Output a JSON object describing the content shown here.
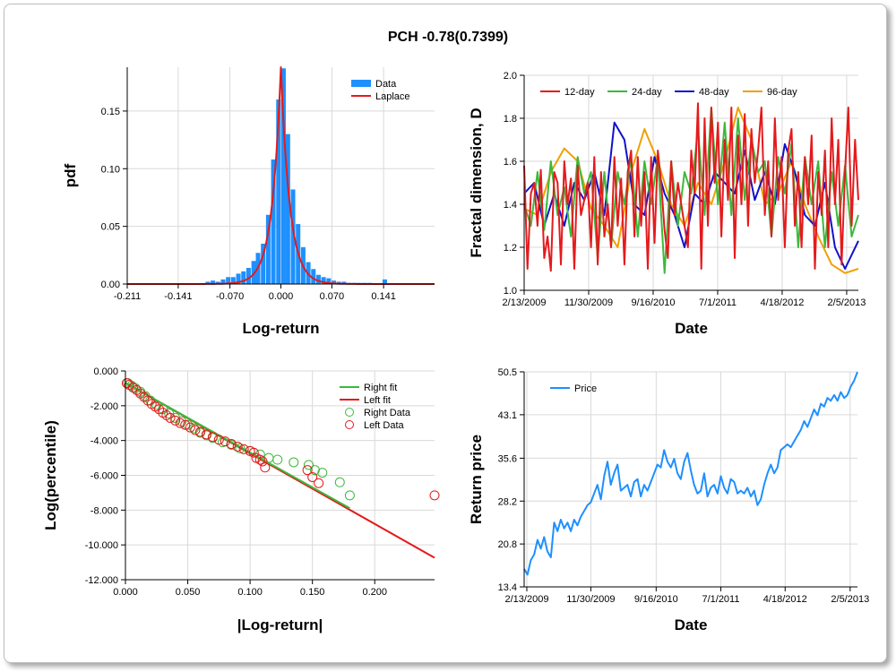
{
  "title": "PCH -0.78(0.7399)",
  "colors": {
    "data_bar": "#1e90ff",
    "laplace": "#e41a1c",
    "d12": "#e41a1c",
    "d24": "#3cb93c",
    "d48": "#1010cc",
    "d96": "#f0a000",
    "right": "#3cb93c",
    "left": "#e41a1c",
    "price": "#1e90ff",
    "grid": "#d9d9d9"
  },
  "chart_data": [
    {
      "type": "bar",
      "xlabel": "Log-return",
      "ylabel": "pdf",
      "xticks": [
        "-0.211",
        "-0.141",
        "-0.070",
        "0.000",
        "0.070",
        "0.141"
      ],
      "xtick_values": [
        -0.211,
        -0.141,
        -0.07,
        0.0,
        0.07,
        0.141
      ],
      "yticks": [
        "0.00",
        "0.05",
        "0.10",
        "0.15"
      ],
      "ytick_values": [
        0,
        0.05,
        0.1,
        0.15
      ],
      "xlim": [
        -0.211,
        0.211
      ],
      "ylim": [
        0,
        0.188
      ],
      "legend": [
        "Data",
        "Laplace"
      ],
      "bin_width": 0.0069,
      "bins": [
        [
          -0.1,
          0.002
        ],
        [
          -0.093,
          0.003
        ],
        [
          -0.086,
          0.002
        ],
        [
          -0.079,
          0.004
        ],
        [
          -0.072,
          0.006
        ],
        [
          -0.065,
          0.006
        ],
        [
          -0.058,
          0.009
        ],
        [
          -0.051,
          0.011
        ],
        [
          -0.044,
          0.014
        ],
        [
          -0.037,
          0.02
        ],
        [
          -0.031,
          0.027
        ],
        [
          -0.024,
          0.035
        ],
        [
          -0.017,
          0.06
        ],
        [
          -0.01,
          0.108
        ],
        [
          -0.003,
          0.16
        ],
        [
          0.004,
          0.187
        ],
        [
          0.01,
          0.13
        ],
        [
          0.017,
          0.082
        ],
        [
          0.024,
          0.052
        ],
        [
          0.031,
          0.032
        ],
        [
          0.038,
          0.019
        ],
        [
          0.045,
          0.013
        ],
        [
          0.052,
          0.008
        ],
        [
          0.059,
          0.006
        ],
        [
          0.066,
          0.005
        ],
        [
          0.073,
          0.003
        ],
        [
          0.08,
          0.002
        ],
        [
          0.087,
          0.002
        ],
        [
          0.094,
          0.001
        ],
        [
          0.101,
          0.001
        ],
        [
          0.108,
          0.001
        ],
        [
          0.115,
          0.001
        ],
        [
          0.122,
          0.001
        ],
        [
          0.129,
          0.0005
        ],
        [
          0.136,
          0.0005
        ],
        [
          0.143,
          0.004
        ]
      ],
      "laplace": {
        "mu": 0.0,
        "b": 0.0122
      }
    },
    {
      "type": "line",
      "xlabel": "Date",
      "ylabel": "Fractal dimension, D",
      "xticks": [
        "2/13/2009",
        "11/30/2009",
        "9/16/2010",
        "7/1/2011",
        "4/18/2012",
        "2/5/2013"
      ],
      "yticks": [
        "1.0",
        "1.2",
        "1.4",
        "1.6",
        "1.8",
        "2.0"
      ],
      "ytick_values": [
        1.0,
        1.2,
        1.4,
        1.6,
        1.8,
        2.0
      ],
      "ylim": [
        1.0,
        2.0
      ],
      "xlim": [
        0,
        100
      ],
      "series": [
        {
          "name": "12-day",
          "color_key": "d12",
          "x": [
            0,
            1,
            2,
            3,
            4,
            5,
            6,
            7,
            8,
            9,
            10,
            11,
            12,
            13,
            14,
            15,
            16,
            17,
            18,
            19,
            20,
            21,
            22,
            23,
            24,
            25,
            26,
            27,
            28,
            29,
            30,
            31,
            32,
            33,
            34,
            35,
            36,
            37,
            38,
            39,
            40,
            41,
            42,
            43,
            44,
            45,
            46,
            47,
            48,
            49,
            50,
            51,
            52,
            53,
            54,
            55,
            56,
            57,
            58,
            59,
            60,
            61,
            62,
            63,
            64,
            65,
            66,
            67,
            68,
            69,
            70,
            71,
            72,
            73,
            74,
            75,
            76,
            77,
            78,
            79,
            80,
            81,
            82,
            83,
            84,
            85,
            86,
            87,
            88,
            89,
            90,
            91,
            92,
            93,
            94,
            95,
            96,
            97,
            98,
            99,
            100
          ],
          "y": [
            1.58,
            1.1,
            1.45,
            1.5,
            1.3,
            1.56,
            1.15,
            1.25,
            1.09,
            1.55,
            1.5,
            1.12,
            1.6,
            1.4,
            1.52,
            1.1,
            1.58,
            1.35,
            1.42,
            1.5,
            1.2,
            1.62,
            1.12,
            1.55,
            1.25,
            1.4,
            1.2,
            1.62,
            1.3,
            1.52,
            1.12,
            1.55,
            1.65,
            1.25,
            1.62,
            1.3,
            1.55,
            1.1,
            1.62,
            1.22,
            1.65,
            1.5,
            1.28,
            1.15,
            1.6,
            1.35,
            1.5,
            1.4,
            1.3,
            1.2,
            1.65,
            1.45,
            1.87,
            1.1,
            1.8,
            1.3,
            1.85,
            1.5,
            1.78,
            1.25,
            1.7,
            1.42,
            1.85,
            1.15,
            1.72,
            1.4,
            1.82,
            1.3,
            1.75,
            1.5,
            1.65,
            1.85,
            1.35,
            1.6,
            1.25,
            1.8,
            1.42,
            1.62,
            1.2,
            1.65,
            1.75,
            1.3,
            1.55,
            1.2,
            1.62,
            1.4,
            1.72,
            1.1,
            1.55,
            1.35,
            1.65,
            1.2,
            1.8,
            1.4,
            1.7,
            1.12,
            1.55,
            1.85,
            1.3,
            1.7,
            1.42
          ]
        },
        {
          "name": "24-day",
          "color_key": "d24",
          "x": [
            0,
            2,
            4,
            6,
            8,
            10,
            12,
            14,
            16,
            18,
            20,
            22,
            24,
            26,
            28,
            30,
            32,
            34,
            36,
            38,
            40,
            42,
            44,
            46,
            48,
            50,
            52,
            54,
            56,
            58,
            60,
            62,
            64,
            66,
            68,
            70,
            72,
            74,
            76,
            78,
            80,
            82,
            84,
            86,
            88,
            90,
            92,
            94,
            96,
            98,
            100
          ],
          "y": [
            1.4,
            1.3,
            1.55,
            1.28,
            1.6,
            1.35,
            1.48,
            1.25,
            1.62,
            1.45,
            1.55,
            1.15,
            1.55,
            1.2,
            1.55,
            1.4,
            1.62,
            1.25,
            1.6,
            1.4,
            1.62,
            1.08,
            1.6,
            1.3,
            1.55,
            1.45,
            1.75,
            1.35,
            1.85,
            1.4,
            1.78,
            1.35,
            1.8,
            1.42,
            1.7,
            1.55,
            1.6,
            1.25,
            1.62,
            1.45,
            1.68,
            1.2,
            1.62,
            1.4,
            1.6,
            1.2,
            1.55,
            1.3,
            1.58,
            1.25,
            1.35
          ]
        },
        {
          "name": "48-day",
          "color_key": "d48",
          "x": [
            0,
            3,
            6,
            9,
            12,
            15,
            18,
            21,
            24,
            27,
            30,
            33,
            36,
            39,
            42,
            45,
            48,
            51,
            54,
            57,
            60,
            63,
            66,
            69,
            72,
            75,
            78,
            81,
            84,
            87,
            90,
            93,
            96,
            100
          ],
          "y": [
            1.45,
            1.5,
            1.3,
            1.45,
            1.3,
            1.5,
            1.42,
            1.55,
            1.35,
            1.78,
            1.7,
            1.4,
            1.35,
            1.62,
            1.45,
            1.35,
            1.2,
            1.45,
            1.4,
            1.55,
            1.5,
            1.45,
            1.65,
            1.42,
            1.55,
            1.4,
            1.68,
            1.55,
            1.35,
            1.3,
            1.5,
            1.2,
            1.1,
            1.23
          ]
        },
        {
          "name": "96-day",
          "color_key": "d96",
          "x": [
            0,
            4,
            8,
            12,
            16,
            20,
            24,
            28,
            32,
            36,
            40,
            44,
            48,
            52,
            56,
            60,
            64,
            68,
            72,
            76,
            80,
            84,
            88,
            92,
            96,
            100
          ],
          "y": [
            1.38,
            1.35,
            1.55,
            1.66,
            1.6,
            1.38,
            1.3,
            1.2,
            1.55,
            1.75,
            1.6,
            1.4,
            1.3,
            1.5,
            1.4,
            1.6,
            1.85,
            1.7,
            1.4,
            1.45,
            1.6,
            1.4,
            1.25,
            1.12,
            1.08,
            1.1
          ]
        }
      ]
    },
    {
      "type": "scatter",
      "xlabel": "|Log-return|",
      "ylabel": "Log(percentile)",
      "xticks": [
        "0.000",
        "0.050",
        "0.100",
        "0.150",
        "0.200"
      ],
      "xtick_values": [
        0,
        0.05,
        0.1,
        0.15,
        0.2
      ],
      "yticks": [
        "0.000",
        "-2.000",
        "-4.000",
        "-6.000",
        "-8.000",
        "-10.000",
        "-12.000"
      ],
      "ytick_values": [
        0,
        -2,
        -4,
        -6,
        -8,
        -10,
        -12
      ],
      "xlim": [
        0,
        0.248
      ],
      "ylim": [
        -12,
        0
      ],
      "legend": [
        "Right fit",
        "Left fit",
        "Right Data",
        "Left Data"
      ],
      "right_fit": {
        "x": [
          0,
          0.18
        ],
        "y": [
          -0.69,
          -7.89
        ]
      },
      "left_fit": {
        "x": [
          0,
          0.248
        ],
        "y": [
          -0.69,
          -10.74
        ]
      },
      "right_data": {
        "x": [
          0.002,
          0.005,
          0.008,
          0.012,
          0.016,
          0.02,
          0.025,
          0.03,
          0.035,
          0.04,
          0.045,
          0.05,
          0.055,
          0.06,
          0.065,
          0.07,
          0.078,
          0.085,
          0.092,
          0.1,
          0.108,
          0.115,
          0.122,
          0.135,
          0.147,
          0.152,
          0.158,
          0.172,
          0.18
        ],
        "y": [
          -0.7,
          -0.85,
          -1.0,
          -1.2,
          -1.45,
          -1.7,
          -1.95,
          -2.2,
          -2.45,
          -2.7,
          -2.9,
          -3.1,
          -3.3,
          -3.55,
          -3.7,
          -3.85,
          -4.1,
          -4.25,
          -4.45,
          -4.6,
          -4.8,
          -5.0,
          -5.1,
          -5.25,
          -5.4,
          -5.7,
          -5.85,
          -6.4,
          -7.15
        ]
      },
      "left_data": {
        "x": [
          0.001,
          0.003,
          0.006,
          0.009,
          0.012,
          0.015,
          0.018,
          0.021,
          0.024,
          0.027,
          0.03,
          0.033,
          0.036,
          0.04,
          0.044,
          0.048,
          0.052,
          0.056,
          0.06,
          0.065,
          0.07,
          0.075,
          0.08,
          0.085,
          0.09,
          0.095,
          0.1,
          0.103,
          0.105,
          0.108,
          0.11,
          0.112,
          0.146,
          0.15,
          0.155,
          0.248
        ],
        "y": [
          -0.7,
          -0.8,
          -0.95,
          -1.1,
          -1.3,
          -1.5,
          -1.7,
          -1.9,
          -2.05,
          -2.2,
          -2.4,
          -2.55,
          -2.7,
          -2.85,
          -3.0,
          -3.1,
          -3.25,
          -3.4,
          -3.5,
          -3.65,
          -3.8,
          -3.95,
          -4.05,
          -4.2,
          -4.35,
          -4.5,
          -4.6,
          -4.7,
          -5.0,
          -5.1,
          -5.2,
          -5.55,
          -5.7,
          -6.1,
          -6.45,
          -7.15
        ]
      }
    },
    {
      "type": "line",
      "xlabel": "Date",
      "ylabel": "Return price",
      "xticks": [
        "2/13/2009",
        "11/30/2009",
        "9/16/2010",
        "7/1/2011",
        "4/18/2012",
        "2/5/2013"
      ],
      "yticks": [
        "13.4",
        "20.8",
        "28.2",
        "35.6",
        "43.1",
        "50.5"
      ],
      "ytick_values": [
        13.4,
        20.8,
        28.2,
        35.6,
        43.1,
        50.5
      ],
      "ylim": [
        13.4,
        50.5
      ],
      "xlim": [
        0,
        100
      ],
      "series": [
        {
          "name": "Price",
          "color_key": "price",
          "x": [
            0,
            1,
            2,
            3,
            4,
            5,
            6,
            7,
            8,
            9,
            10,
            11,
            12,
            13,
            14,
            15,
            16,
            17,
            18,
            19,
            20,
            21,
            22,
            23,
            24,
            25,
            26,
            27,
            28,
            29,
            30,
            31,
            32,
            33,
            34,
            35,
            36,
            37,
            38,
            39,
            40,
            41,
            42,
            43,
            44,
            45,
            46,
            47,
            48,
            49,
            50,
            51,
            52,
            53,
            54,
            55,
            56,
            57,
            58,
            59,
            60,
            61,
            62,
            63,
            64,
            65,
            66,
            67,
            68,
            69,
            70,
            71,
            72,
            73,
            74,
            75,
            76,
            77,
            78,
            79,
            80,
            81,
            82,
            83,
            84,
            85,
            86,
            87,
            88,
            89,
            90,
            91,
            92,
            93,
            94,
            95,
            96,
            97,
            98,
            99,
            100
          ],
          "y": [
            16.5,
            15.5,
            18.0,
            19.0,
            21.5,
            20.0,
            22.0,
            19.5,
            18.5,
            24.5,
            23.0,
            25.0,
            23.5,
            24.5,
            23.0,
            25.0,
            24.0,
            25.5,
            26.5,
            27.5,
            28.0,
            29.5,
            31.0,
            28.5,
            32.5,
            35.0,
            31.0,
            33.0,
            34.5,
            30.0,
            30.5,
            31.0,
            29.0,
            31.5,
            32.0,
            29.0,
            31.0,
            30.0,
            31.5,
            33.0,
            34.5,
            34.0,
            37.0,
            35.0,
            34.0,
            35.5,
            33.0,
            32.0,
            35.0,
            36.5,
            33.5,
            31.0,
            29.5,
            30.0,
            33.0,
            29.0,
            30.5,
            31.0,
            29.5,
            32.5,
            30.5,
            29.5,
            32.0,
            31.5,
            29.5,
            30.0,
            29.5,
            30.5,
            29.0,
            30.0,
            27.5,
            28.5,
            31.0,
            33.0,
            34.5,
            33.0,
            34.0,
            37.0,
            37.5,
            38.0,
            37.5,
            38.5,
            39.5,
            40.5,
            42.0,
            41.0,
            42.5,
            44.0,
            43.0,
            45.0,
            44.5,
            46.0,
            45.5,
            46.5,
            45.5,
            47.0,
            46.0,
            46.5,
            48.0,
            49.0,
            50.5
          ]
        }
      ]
    }
  ]
}
